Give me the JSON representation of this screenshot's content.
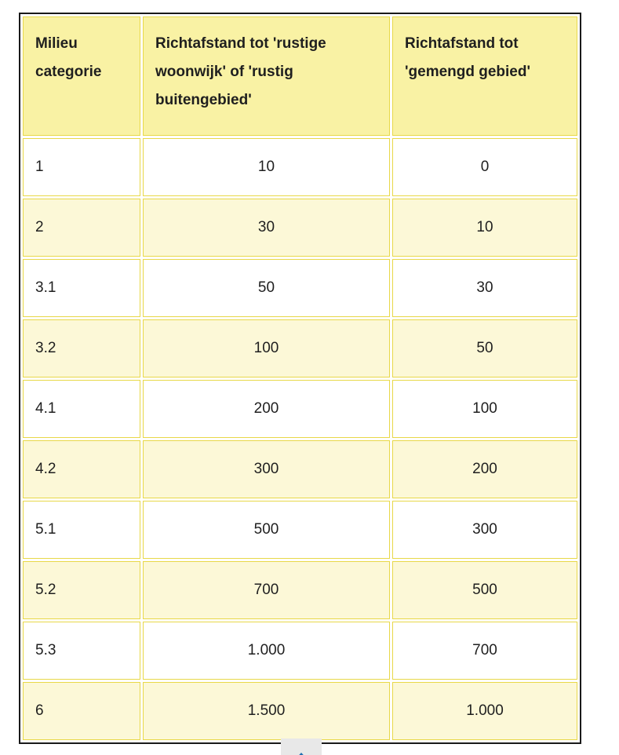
{
  "table": {
    "headers": [
      "Milieu categorie",
      "Richtafstand tot 'rustige woonwijk' of 'rustig buitengebied'",
      "Richtafstand tot 'gemengd gebied'"
    ],
    "rows": [
      [
        "1",
        "10",
        "0"
      ],
      [
        "2",
        "30",
        "10"
      ],
      [
        "3.1",
        "50",
        "30"
      ],
      [
        "3.2",
        "100",
        "50"
      ],
      [
        "4.1",
        "200",
        "100"
      ],
      [
        "4.2",
        "300",
        "200"
      ],
      [
        "5.1",
        "500",
        "300"
      ],
      [
        "5.2",
        "700",
        "500"
      ],
      [
        "5.3",
        "1.000",
        "700"
      ],
      [
        "6",
        "1.500",
        "1.000"
      ]
    ],
    "colors": {
      "header_background": "#f9f2a4",
      "alternate_row_background": "#fcf8d7",
      "cell_border": "#e8d848",
      "outer_border": "#1a1a1a",
      "text": "#1f1f1f"
    }
  },
  "back_to_top": {
    "icon": "chevron-up",
    "background": "#e8e8e8",
    "arrow_color": "#1e6fb1"
  }
}
